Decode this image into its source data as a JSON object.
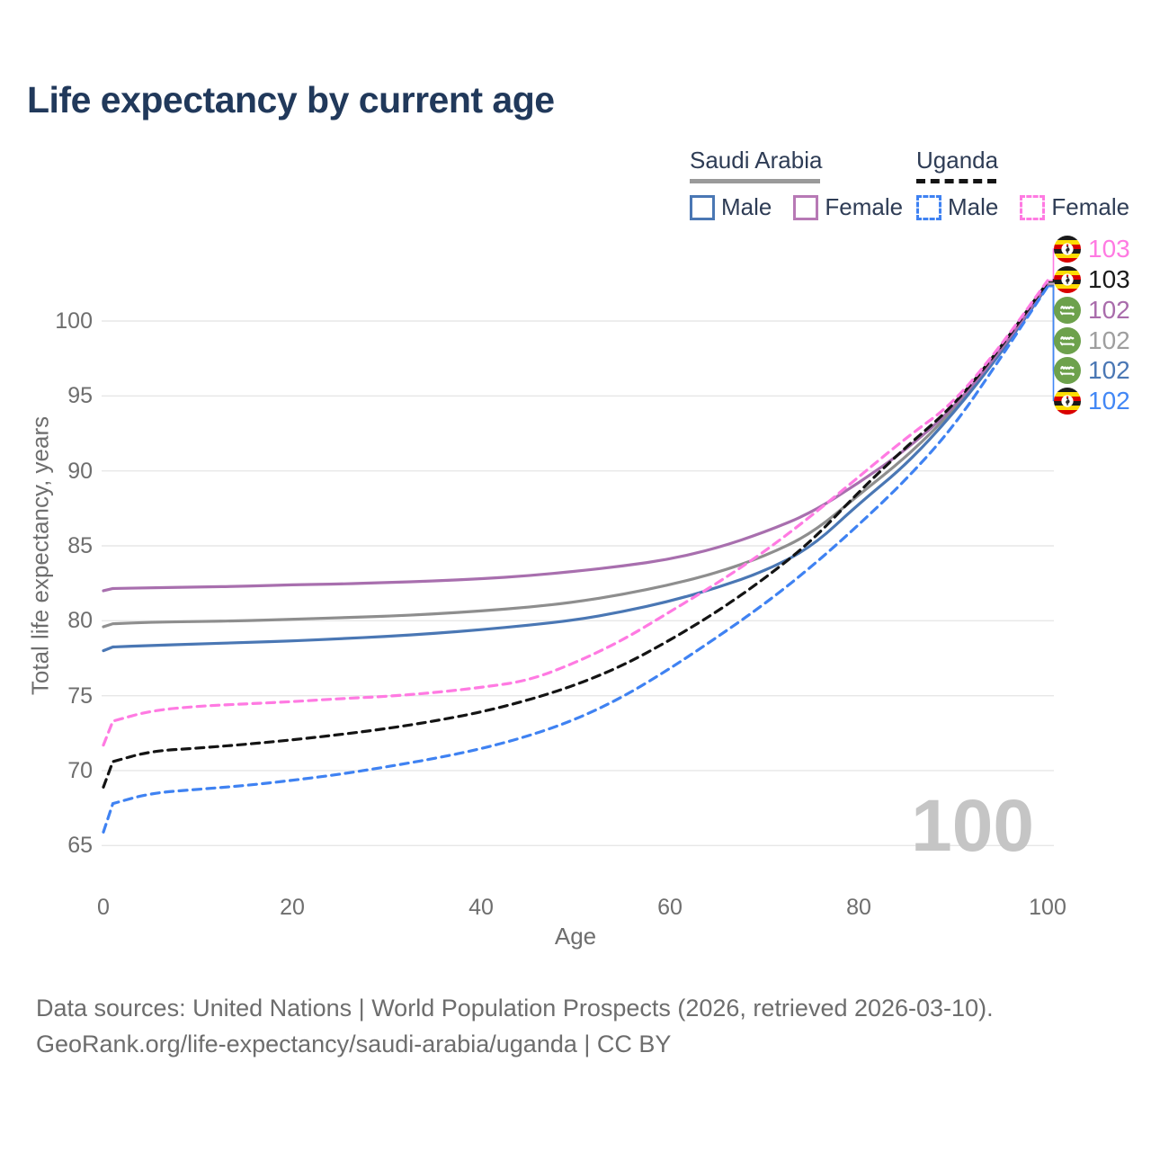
{
  "title": "Life expectancy by current age",
  "legend": {
    "groups": [
      {
        "country": "Saudi Arabia",
        "line_style": "solid",
        "line_color": "#9a9a9a",
        "items": [
          {
            "label": "Male",
            "color": "#4a77b4",
            "dashed": false
          },
          {
            "label": "Female",
            "color": "#b779b5",
            "dashed": false
          }
        ]
      },
      {
        "country": "Uganda",
        "line_style": "dashed",
        "line_color": "#141414",
        "items": [
          {
            "label": "Male",
            "color": "#3f82f2",
            "dashed": true
          },
          {
            "label": "Female",
            "color": "#ff7ae2",
            "dashed": true
          }
        ]
      }
    ]
  },
  "age_counter": "100",
  "end_labels": [
    {
      "flag": "uganda",
      "series": "Uganda Female",
      "value": "103",
      "color": "#ff7ae2"
    },
    {
      "flag": "uganda",
      "series": "Uganda",
      "value": "103",
      "color": "#1a1a1a"
    },
    {
      "flag": "saudi-arabia",
      "series": "Saudi Arabia Female",
      "value": "102",
      "color": "#a96cab"
    },
    {
      "flag": "saudi-arabia",
      "series": "Saudi Arabia",
      "value": "102",
      "color": "#9e9e9e"
    },
    {
      "flag": "saudi-arabia",
      "series": "Saudi Arabia Male",
      "value": "102",
      "color": "#4a77b4"
    },
    {
      "flag": "uganda",
      "series": "Uganda Male",
      "value": "102",
      "color": "#4287f5"
    }
  ],
  "footer": {
    "line1": "Data sources: United Nations | World Population Prospects (2026, retrieved 2026-03-10).",
    "line2": "GeoRank.org/life-expectancy/saudi-arabia/uganda | CC BY"
  },
  "chart_data": {
    "type": "line",
    "title": "Life expectancy by current age",
    "xlabel": "Age",
    "ylabel": "Total life expectancy, years",
    "xlim": [
      0,
      100
    ],
    "ylim": [
      63,
      103
    ],
    "xticks": [
      0,
      20,
      40,
      60,
      80,
      100
    ],
    "yticks": [
      65,
      70,
      75,
      80,
      85,
      90,
      95,
      100
    ],
    "grid": "horizontal",
    "legend_position": "top-right",
    "gridline_color": "#e7e7e7",
    "x": [
      0,
      1,
      5,
      10,
      15,
      20,
      25,
      30,
      35,
      40,
      45,
      50,
      55,
      60,
      65,
      70,
      75,
      80,
      85,
      90,
      95,
      100
    ],
    "series": [
      {
        "name": "Saudi Arabia",
        "sex": "both",
        "color": "#8e8e8e",
        "dash": "solid",
        "values": [
          79.6,
          79.8,
          79.9,
          79.95,
          80.0,
          80.1,
          80.2,
          80.3,
          80.45,
          80.65,
          80.9,
          81.25,
          81.75,
          82.4,
          83.2,
          84.3,
          85.8,
          88.4,
          90.9,
          94.0,
          97.9,
          102.4
        ]
      },
      {
        "name": "Saudi Arabia Male",
        "sex": "male",
        "color": "#4a77b4",
        "dash": "solid",
        "values": [
          78.0,
          78.25,
          78.35,
          78.45,
          78.55,
          78.65,
          78.8,
          78.95,
          79.15,
          79.4,
          79.7,
          80.05,
          80.6,
          81.3,
          82.2,
          83.3,
          84.9,
          87.8,
          90.4,
          93.8,
          97.8,
          102.35
        ]
      },
      {
        "name": "Saudi Arabia Female",
        "sex": "female",
        "color": "#a86fae",
        "dash": "solid",
        "values": [
          82.0,
          82.15,
          82.2,
          82.25,
          82.3,
          82.4,
          82.45,
          82.55,
          82.65,
          82.8,
          83.0,
          83.3,
          83.65,
          84.1,
          84.85,
          85.9,
          87.2,
          89.2,
          91.4,
          94.15,
          98.0,
          102.45
        ]
      },
      {
        "name": "Uganda Male",
        "sex": "male",
        "color": "#3f82f2",
        "dash": "dashed",
        "values": [
          65.9,
          67.8,
          68.5,
          68.75,
          69.0,
          69.35,
          69.75,
          70.25,
          70.8,
          71.45,
          72.3,
          73.4,
          74.9,
          76.8,
          78.9,
          81.1,
          83.6,
          86.4,
          89.4,
          92.9,
          97.5,
          102.3
        ]
      },
      {
        "name": "Uganda",
        "sex": "both",
        "color": "#141414",
        "dash": "dashed",
        "values": [
          68.9,
          70.6,
          71.3,
          71.5,
          71.75,
          72.05,
          72.4,
          72.8,
          73.3,
          73.9,
          74.7,
          75.7,
          77.0,
          78.7,
          80.6,
          82.8,
          85.3,
          88.6,
          91.6,
          94.3,
          98.2,
          102.6
        ]
      },
      {
        "name": "Uganda Female",
        "sex": "female",
        "color": "#ff7ae2",
        "dash": "dashed",
        "values": [
          71.7,
          73.3,
          74.0,
          74.3,
          74.45,
          74.6,
          74.8,
          74.95,
          75.2,
          75.55,
          76.0,
          77.2,
          78.7,
          80.6,
          82.5,
          84.6,
          87.0,
          89.6,
          92.2,
          94.5,
          98.3,
          102.7
        ]
      }
    ]
  }
}
